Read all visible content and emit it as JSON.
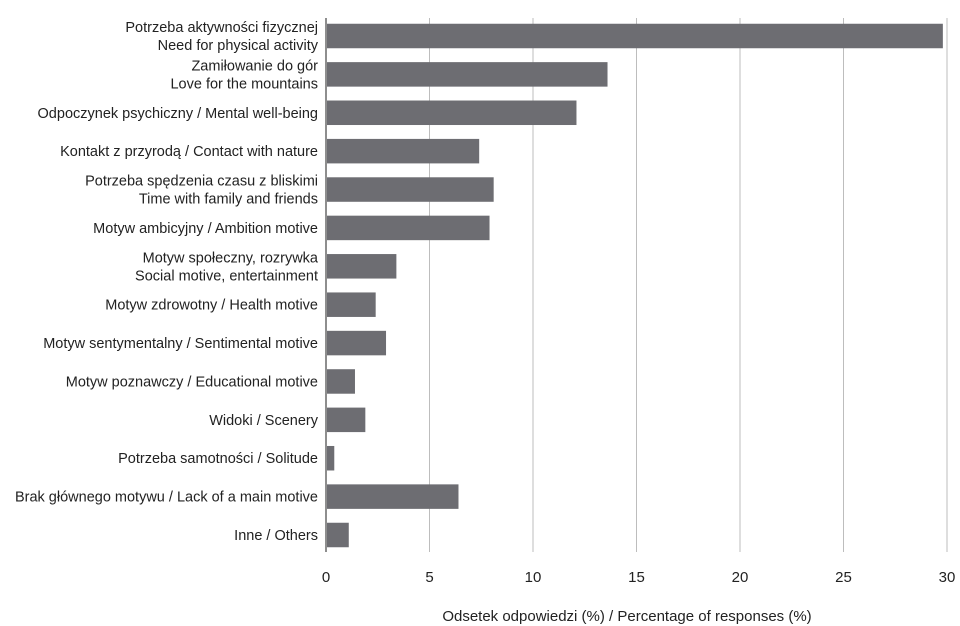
{
  "chart_data": {
    "type": "bar",
    "orientation": "horizontal",
    "categories": [
      [
        "Potrzeba aktywności fizycznej",
        "Need for physical activity"
      ],
      [
        "Zamiłowanie do gór",
        "Love for the mountains"
      ],
      [
        "Odpoczynek psychiczny / Mental well-being"
      ],
      [
        "Kontakt z przyrodą / Contact with nature"
      ],
      [
        "Potrzeba spędzenia czasu z bliskimi",
        "Time with family and friends"
      ],
      [
        "Motyw ambicyjny / Ambition motive"
      ],
      [
        "Motyw społeczny, rozrywka",
        "Social motive, entertainment"
      ],
      [
        "Motyw zdrowotny / Health motive"
      ],
      [
        "Motyw sentymentalny / Sentimental motive"
      ],
      [
        "Motyw poznawczy / Educational motive"
      ],
      [
        "Widoki / Scenery"
      ],
      [
        "Potrzeba samotności / Solitude"
      ],
      [
        "Brak głównego motywu / Lack of a main motive"
      ],
      [
        "Inne / Others"
      ]
    ],
    "values": [
      29.8,
      13.6,
      12.1,
      7.4,
      8.1,
      7.9,
      3.4,
      2.4,
      2.9,
      1.4,
      1.9,
      0.4,
      6.4,
      1.1
    ],
    "title": "",
    "xlabel": "Odsetek odpowiedzi (%) / Percentage of responses (%)",
    "ylabel": "",
    "xlim": [
      0,
      30
    ],
    "xticks": [
      0,
      5,
      10,
      15,
      20,
      25,
      30
    ],
    "grid": "vertical",
    "legend": "none",
    "colors": {
      "bar": "#6d6d72",
      "grid": "#bdbdbd",
      "axis": "#444444",
      "text": "#222222"
    }
  }
}
